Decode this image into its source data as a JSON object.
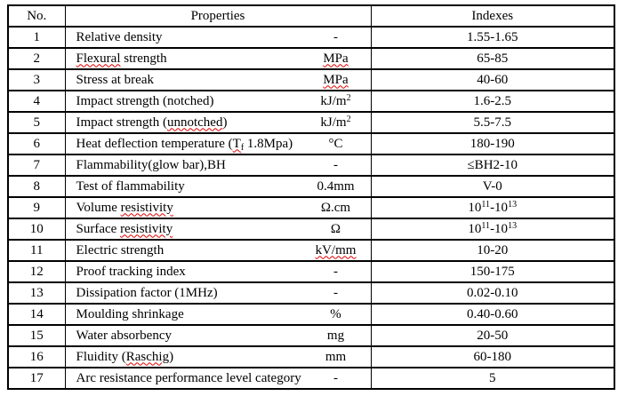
{
  "colors": {
    "text": "#000000",
    "border": "#000000",
    "background": "#ffffff",
    "squiggle": "#e00000"
  },
  "table": {
    "columns": [
      "No.",
      "Properties",
      "Indexes"
    ],
    "rows": [
      {
        "no": "1",
        "property": [
          {
            "text": "Relative density"
          }
        ],
        "unit": [
          {
            "text": "-"
          }
        ],
        "index": [
          {
            "text": "1.55-1.65"
          }
        ]
      },
      {
        "no": "2",
        "property": [
          {
            "text": "Flexural",
            "squiggle": true
          },
          {
            "text": " strength"
          }
        ],
        "unit": [
          {
            "text": "MPa",
            "squiggle": true
          }
        ],
        "index": [
          {
            "text": "65-85"
          }
        ]
      },
      {
        "no": "3",
        "property": [
          {
            "text": "Stress at break"
          }
        ],
        "unit": [
          {
            "text": "MPa",
            "squiggle": true
          }
        ],
        "index": [
          {
            "text": "40-60"
          }
        ]
      },
      {
        "no": "4",
        "property": [
          {
            "text": "Impact strength (notched)"
          }
        ],
        "unit": [
          {
            "text": "kJ/m"
          },
          {
            "text": "2",
            "sup": true
          }
        ],
        "index": [
          {
            "text": "1.6-2.5"
          }
        ]
      },
      {
        "no": "5",
        "property": [
          {
            "text": "Impact strength ("
          },
          {
            "text": "unnotched",
            "squiggle": true
          },
          {
            "text": ")"
          }
        ],
        "unit": [
          {
            "text": "kJ/m"
          },
          {
            "text": "2",
            "sup": true
          }
        ],
        "index": [
          {
            "text": "5.5-7.5"
          }
        ]
      },
      {
        "no": "6",
        "property": [
          {
            "text": "Heat deflection temperature ("
          },
          {
            "text": "T",
            "squiggle": true
          },
          {
            "text": "f",
            "sub": true,
            "squiggle": true
          },
          {
            "text": " 1.8Mpa)"
          }
        ],
        "unit": [
          {
            "text": "°C"
          }
        ],
        "index": [
          {
            "text": "180-190"
          }
        ]
      },
      {
        "no": "7",
        "property": [
          {
            "text": "Flammability(glow bar),BH"
          }
        ],
        "unit": [
          {
            "text": "-"
          }
        ],
        "index": [
          {
            "text": "≤BH2-10"
          }
        ]
      },
      {
        "no": "8",
        "property": [
          {
            "text": "Test of flammability"
          }
        ],
        "unit": [
          {
            "text": "0.4mm"
          }
        ],
        "index": [
          {
            "text": "V-0"
          }
        ]
      },
      {
        "no": "9",
        "property": [
          {
            "text": "Volume "
          },
          {
            "text": "resistivity",
            "squiggle": true
          }
        ],
        "unit": [
          {
            "text": "Ω.cm"
          }
        ],
        "index": [
          {
            "text": "10"
          },
          {
            "text": "11",
            "sup": true
          },
          {
            "text": "-10"
          },
          {
            "text": "13",
            "sup": true
          }
        ]
      },
      {
        "no": "10",
        "property": [
          {
            "text": "Surface "
          },
          {
            "text": "resistivity",
            "squiggle": true
          }
        ],
        "unit": [
          {
            "text": "Ω"
          }
        ],
        "index": [
          {
            "text": "10"
          },
          {
            "text": "11",
            "sup": true
          },
          {
            "text": "-10"
          },
          {
            "text": "13",
            "sup": true
          }
        ]
      },
      {
        "no": "11",
        "property": [
          {
            "text": "Electric strength"
          }
        ],
        "unit": [
          {
            "text": "kV/mm",
            "squiggle": true
          }
        ],
        "index": [
          {
            "text": "10-20"
          }
        ]
      },
      {
        "no": "12",
        "property": [
          {
            "text": "Proof tracking index"
          }
        ],
        "unit": [
          {
            "text": "-"
          }
        ],
        "index": [
          {
            "text": "150-175"
          }
        ]
      },
      {
        "no": "13",
        "property": [
          {
            "text": "Dissipation factor (1MHz)"
          }
        ],
        "unit": [
          {
            "text": "-"
          }
        ],
        "index": [
          {
            "text": "0.02-0.10"
          }
        ]
      },
      {
        "no": "14",
        "property": [
          {
            "text": "Moulding shrinkage"
          }
        ],
        "unit": [
          {
            "text": "%"
          }
        ],
        "index": [
          {
            "text": "0.40-0.60"
          }
        ]
      },
      {
        "no": "15",
        "property": [
          {
            "text": "Water absorbency"
          }
        ],
        "unit": [
          {
            "text": "mg"
          }
        ],
        "index": [
          {
            "text": "20-50"
          }
        ]
      },
      {
        "no": "16",
        "property": [
          {
            "text": "Fluidity ("
          },
          {
            "text": "Raschig",
            "squiggle": true
          },
          {
            "text": ")"
          }
        ],
        "unit": [
          {
            "text": "mm"
          }
        ],
        "index": [
          {
            "text": "60-180"
          }
        ]
      },
      {
        "no": "17",
        "property": [
          {
            "text": "Arc resistance performance level category"
          }
        ],
        "unit": [
          {
            "text": "-"
          }
        ],
        "index": [
          {
            "text": "5"
          }
        ]
      }
    ]
  }
}
